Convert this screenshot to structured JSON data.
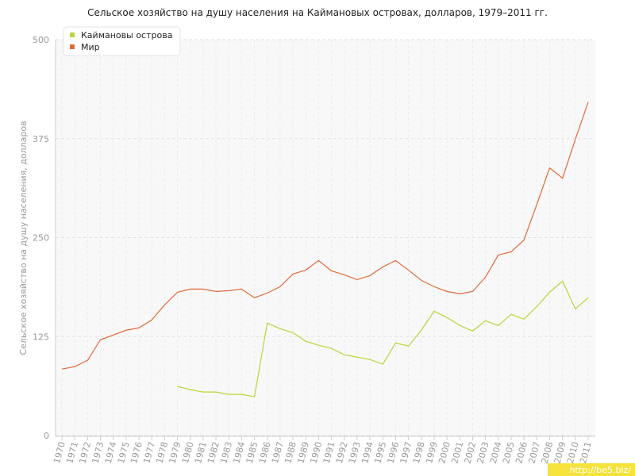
{
  "chart_data": {
    "type": "line",
    "title": "Сельское хозяйство на душу населения на Каймановых островах, долларов, 1979–2011 гг.",
    "y_label": "Сельское хозяйство на душу населения, долларов",
    "categories": [
      "1970",
      "1971",
      "1972",
      "1973",
      "1974",
      "1975",
      "1976",
      "1977",
      "1978",
      "1979",
      "1980",
      "1981",
      "1982",
      "1983",
      "1984",
      "1985",
      "1986",
      "1987",
      "1988",
      "1989",
      "1990",
      "1991",
      "1992",
      "1993",
      "1994",
      "1995",
      "1996",
      "1997",
      "1998",
      "1999",
      "2000",
      "2001",
      "2002",
      "2003",
      "2004",
      "2005",
      "2006",
      "2007",
      "2008",
      "2009",
      "2010",
      "2011"
    ],
    "series": [
      {
        "name": "Каймановы острова",
        "color": "#bcd33a",
        "values": [
          null,
          null,
          null,
          null,
          null,
          null,
          null,
          null,
          null,
          62,
          58,
          55,
          55,
          52,
          52,
          49,
          142,
          135,
          130,
          119,
          114,
          110,
          102,
          99,
          96,
          90,
          117,
          113,
          133,
          157,
          149,
          139,
          132,
          145,
          139,
          153,
          147,
          163,
          181,
          195,
          160,
          174
        ]
      },
      {
        "name": "Мир",
        "color": "#e0693a",
        "values": [
          84,
          87,
          95,
          121,
          127,
          133,
          136,
          146,
          165,
          181,
          185,
          185,
          182,
          183,
          185,
          174,
          180,
          188,
          204,
          209,
          221,
          208,
          203,
          197,
          202,
          213,
          221,
          209,
          196,
          188,
          182,
          179,
          182,
          200,
          228,
          232,
          247,
          292,
          338,
          325,
          374,
          421
        ]
      }
    ],
    "ylim": [
      0,
      500
    ],
    "yticks": [
      0,
      125,
      250,
      375,
      500
    ],
    "grid": true,
    "legend": "top-left",
    "watermark": "http://be5.biz/"
  }
}
